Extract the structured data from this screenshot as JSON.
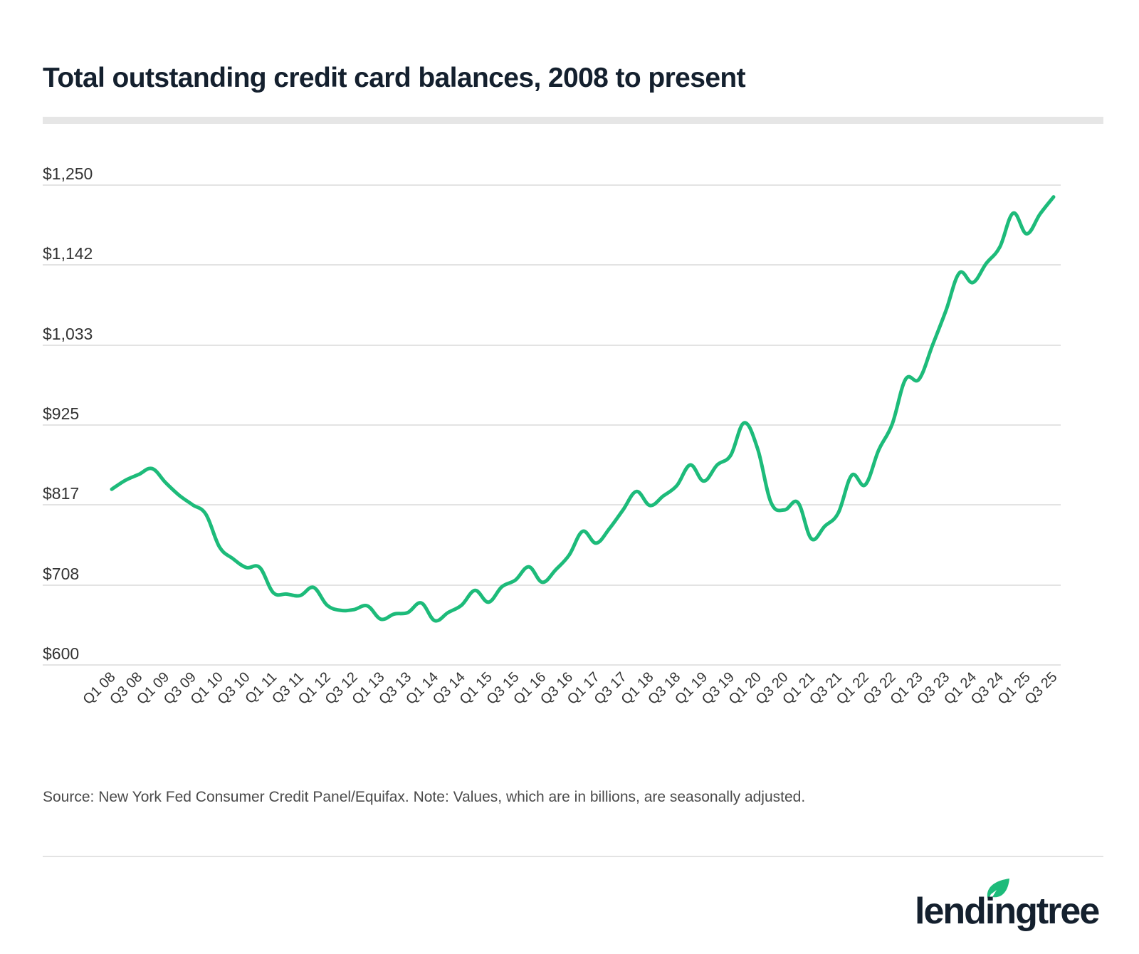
{
  "header": {
    "title": "Total outstanding credit card balances, 2008 to present"
  },
  "footer": {
    "source": "Source: New York Fed Consumer Credit Panel/Equifax. Note: Values, which are in billions, are seasonally adjusted.",
    "brand": "lendingtree"
  },
  "colors": {
    "line": "#1dbb7a",
    "grid": "#e3e3e3",
    "text": "#333333",
    "title": "#14202e",
    "brand_leaf": "#1dbb7a"
  },
  "chart_data": {
    "type": "line",
    "title": "Total outstanding credit card balances, 2008 to present",
    "xlabel": "",
    "ylabel": "",
    "units": "billions USD, seasonally adjusted",
    "ylim": [
      600,
      1250
    ],
    "y_ticks": [
      600,
      708,
      817,
      925,
      1033,
      1142,
      1250
    ],
    "y_tick_labels": [
      "$600",
      "$708",
      "$817",
      "$925",
      "$1,033",
      "$1,142",
      "$1,250"
    ],
    "grid": true,
    "legend": "none",
    "x_tick_labels": [
      "Q1 08",
      "Q3 08",
      "Q1 09",
      "Q3 09",
      "Q1 10",
      "Q3 10",
      "Q1 11",
      "Q3 11",
      "Q1 12",
      "Q3 12",
      "Q1 13",
      "Q3 13",
      "Q1 14",
      "Q3 14",
      "Q1 15",
      "Q3 15",
      "Q1 16",
      "Q3 16",
      "Q1 17",
      "Q3 17",
      "Q1 18",
      "Q3 18",
      "Q1 19",
      "Q3 19",
      "Q1 20",
      "Q3 20",
      "Q1 21",
      "Q3 21",
      "Q1 22",
      "Q3 22",
      "Q1 23",
      "Q3 23",
      "Q1 24",
      "Q3 24",
      "Q1 25",
      "Q3 25"
    ],
    "x": [
      "Q1 08",
      "Q2 08",
      "Q3 08",
      "Q4 08",
      "Q1 09",
      "Q2 09",
      "Q3 09",
      "Q4 09",
      "Q1 10",
      "Q2 10",
      "Q3 10",
      "Q4 10",
      "Q1 11",
      "Q2 11",
      "Q3 11",
      "Q4 11",
      "Q1 12",
      "Q2 12",
      "Q3 12",
      "Q4 12",
      "Q1 13",
      "Q2 13",
      "Q3 13",
      "Q4 13",
      "Q1 14",
      "Q2 14",
      "Q3 14",
      "Q4 14",
      "Q1 15",
      "Q2 15",
      "Q3 15",
      "Q4 15",
      "Q1 16",
      "Q2 16",
      "Q3 16",
      "Q4 16",
      "Q1 17",
      "Q2 17",
      "Q3 17",
      "Q4 17",
      "Q1 18",
      "Q2 18",
      "Q3 18",
      "Q4 18",
      "Q1 19",
      "Q2 19",
      "Q3 19",
      "Q4 19",
      "Q1 20",
      "Q2 20",
      "Q3 20",
      "Q4 20",
      "Q1 21",
      "Q2 21",
      "Q3 21",
      "Q4 21",
      "Q1 22",
      "Q2 22",
      "Q3 22",
      "Q4 22",
      "Q1 23",
      "Q2 23",
      "Q3 23",
      "Q4 23",
      "Q1 24",
      "Q2 24",
      "Q3 24",
      "Q4 24",
      "Q1 25",
      "Q2 25",
      "Q3 25"
    ],
    "series": [
      {
        "name": "Total outstanding credit card balances",
        "values": [
          838,
          850,
          858,
          866,
          847,
          830,
          817,
          804,
          760,
          744,
          732,
          732,
          698,
          696,
          694,
          705,
          681,
          674,
          675,
          680,
          662,
          669,
          671,
          684,
          660,
          671,
          681,
          701,
          685,
          706,
          715,
          733,
          712,
          729,
          749,
          781,
          765,
          785,
          810,
          835,
          816,
          829,
          843,
          871,
          849,
          871,
          884,
          928,
          893,
          820,
          810,
          820,
          771,
          788,
          806,
          857,
          844,
          891,
          926,
          987,
          987,
          1033,
          1080,
          1131,
          1118,
          1144,
          1166,
          1212,
          1184,
          1211,
          1234
        ]
      }
    ]
  }
}
